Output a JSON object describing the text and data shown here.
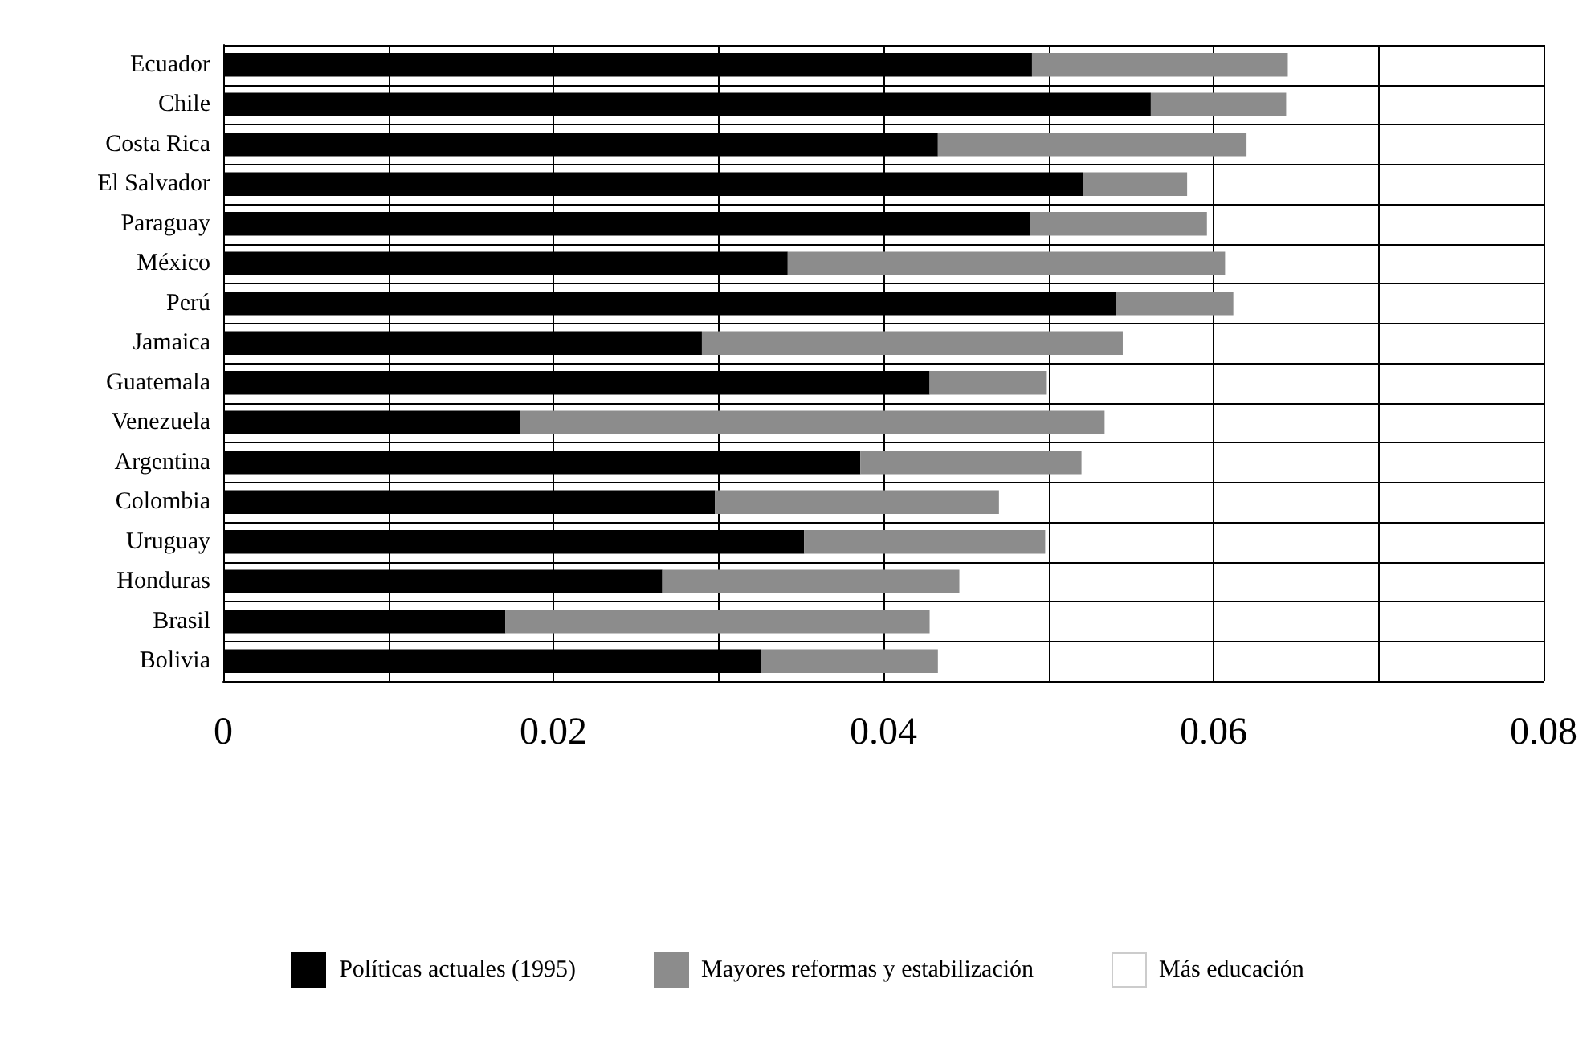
{
  "chart_data": {
    "type": "bar",
    "orientation": "horizontal",
    "stacked": true,
    "categories": [
      "Ecuador",
      "Chile",
      "Costa Rica",
      "El Salvador",
      "Paraguay",
      "México",
      "Perú",
      "Jamaica",
      "Guatemala",
      "Venezuela",
      "Argentina",
      "Colombia",
      "Uruguay",
      "Honduras",
      "Brasil",
      "Bolivia"
    ],
    "series": [
      {
        "name": "Políticas actuales (1995)",
        "color": "#000000",
        "values": [
          0.049,
          0.0562,
          0.0433,
          0.0521,
          0.0489,
          0.0342,
          0.0541,
          0.029,
          0.0428,
          0.018,
          0.0386,
          0.0298,
          0.0352,
          0.0266,
          0.0171,
          0.0326
        ]
      },
      {
        "name": "Mayores reformas y estabilización",
        "color": "#8c8c8c",
        "values": [
          0.0155,
          0.0082,
          0.0187,
          0.0063,
          0.0107,
          0.0265,
          0.0071,
          0.0255,
          0.0071,
          0.0354,
          0.0134,
          0.0172,
          0.0146,
          0.018,
          0.0257,
          0.0107
        ]
      },
      {
        "name": "Más educación",
        "color": "#ffffff",
        "values": [
          null,
          null,
          null,
          null,
          null,
          null,
          null,
          null,
          null,
          null,
          null,
          null,
          null,
          null,
          null,
          null
        ]
      }
    ],
    "xlim": [
      0,
      0.08
    ],
    "xticks": [
      0,
      {
        "value": 0.01,
        "label": null
      },
      0.02,
      {
        "value": 0.03,
        "label": null
      },
      0.04,
      {
        "value": 0.05,
        "label": null
      },
      0.06,
      {
        "value": 0.07,
        "label": null
      },
      0.08
    ],
    "grid": true,
    "legend": "bottom"
  }
}
